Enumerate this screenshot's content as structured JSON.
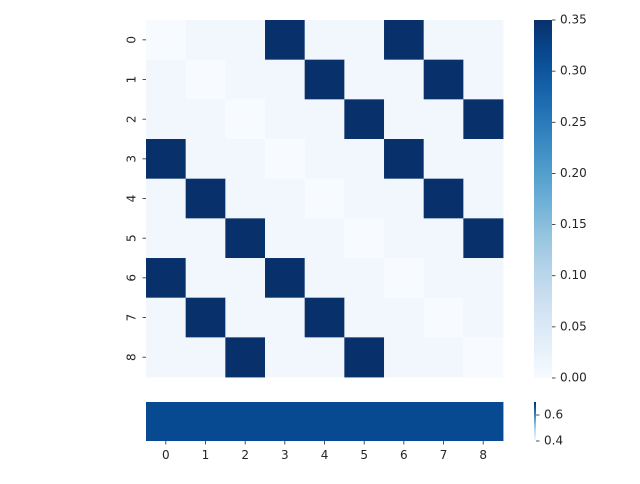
{
  "chart_data": [
    {
      "type": "heatmap",
      "rows": [
        "0",
        "1",
        "2",
        "3",
        "4",
        "5",
        "6",
        "7",
        "8"
      ],
      "cols": [
        "0",
        "1",
        "2",
        "3",
        "4",
        "5",
        "6",
        "7",
        "8"
      ],
      "values": [
        [
          0.0,
          0.01,
          0.01,
          0.35,
          0.01,
          0.01,
          0.35,
          0.01,
          0.01
        ],
        [
          0.01,
          0.0,
          0.01,
          0.01,
          0.35,
          0.01,
          0.01,
          0.35,
          0.01
        ],
        [
          0.01,
          0.01,
          0.0,
          0.01,
          0.01,
          0.35,
          0.01,
          0.01,
          0.35
        ],
        [
          0.35,
          0.01,
          0.01,
          0.0,
          0.01,
          0.01,
          0.35,
          0.01,
          0.01
        ],
        [
          0.01,
          0.35,
          0.01,
          0.01,
          0.0,
          0.01,
          0.01,
          0.35,
          0.01
        ],
        [
          0.01,
          0.01,
          0.35,
          0.01,
          0.01,
          0.0,
          0.01,
          0.01,
          0.35
        ],
        [
          0.35,
          0.01,
          0.01,
          0.35,
          0.01,
          0.01,
          0.0,
          0.01,
          0.01
        ],
        [
          0.01,
          0.35,
          0.01,
          0.01,
          0.35,
          0.01,
          0.01,
          0.0,
          0.01
        ],
        [
          0.01,
          0.01,
          0.35,
          0.01,
          0.01,
          0.35,
          0.01,
          0.01,
          0.0
        ]
      ],
      "colormap": "Blues",
      "colorbar": {
        "range": [
          0.0,
          0.35
        ],
        "ticks": [
          0.0,
          0.05,
          0.1,
          0.15,
          0.2,
          0.25,
          0.3,
          0.35
        ],
        "tick_labels": [
          "0.00",
          "0.05",
          "0.10",
          "0.15",
          "0.20",
          "0.25",
          "0.30",
          "0.35"
        ]
      },
      "title": "",
      "xlabel": "",
      "ylabel": ""
    },
    {
      "type": "heatmap",
      "rows": [
        ""
      ],
      "cols": [
        "0",
        "1",
        "2",
        "3",
        "4",
        "5",
        "6",
        "7",
        "8"
      ],
      "values": [
        [
          0.67,
          0.67,
          0.67,
          0.67,
          0.67,
          0.67,
          0.67,
          0.67,
          0.67
        ]
      ],
      "x_tick_labels": [
        "0",
        "1",
        "2",
        "3",
        "4",
        "5",
        "6",
        "7",
        "8"
      ],
      "colormap": "Blues",
      "colorbar": {
        "range": [
          0.4,
          0.7
        ],
        "ticks": [
          0.4,
          0.6
        ],
        "tick_labels": [
          "0.4",
          "0.6"
        ]
      },
      "title": "",
      "xlabel": "",
      "ylabel": ""
    }
  ],
  "colors": {
    "blues_low": "#f7fbff",
    "blues_high": "#08306b",
    "tick_color": "#262626"
  }
}
